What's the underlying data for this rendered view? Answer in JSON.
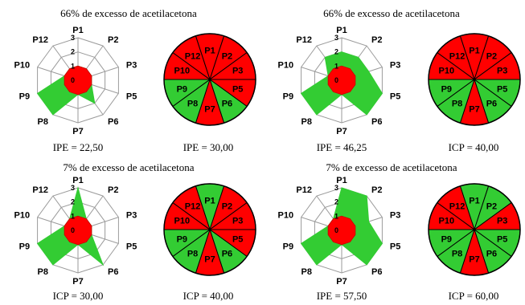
{
  "chart_data": [
    {
      "title": "66% de excesso de acetilacetona",
      "radar": {
        "type": "radar",
        "axes": [
          "P1",
          "P2",
          "P3",
          "P5",
          "P6",
          "P7",
          "P8",
          "P9",
          "P10",
          "P12"
        ],
        "values": [
          1,
          1,
          1,
          1,
          2,
          1,
          3,
          3,
          1,
          1
        ],
        "ticks": [
          "0",
          "1",
          "2",
          "3"
        ],
        "rmax": 3,
        "index_label": "IPE = 22,50"
      },
      "pie": {
        "type": "pie",
        "slices": [
          "P1",
          "P2",
          "P3",
          "P5",
          "P6",
          "P7",
          "P8",
          "P9",
          "P10",
          "P12"
        ],
        "status": [
          "red",
          "red",
          "red",
          "red",
          "green",
          "red",
          "green",
          "green",
          "red",
          "red"
        ],
        "index_label": "IPE = 30,00"
      }
    },
    {
      "title": "66% de excesso de acetilacetona",
      "radar": {
        "type": "radar",
        "axes": [
          "P1",
          "P2",
          "P3",
          "P5",
          "P6",
          "P7",
          "P8",
          "P9",
          "P10",
          "P12"
        ],
        "values": [
          2,
          2,
          2,
          3,
          3,
          1,
          3,
          3,
          1,
          2
        ],
        "ticks": [
          "0",
          "1",
          "2",
          "3"
        ],
        "rmax": 3,
        "index_label": "IPE = 46,25"
      },
      "pie": {
        "type": "pie",
        "slices": [
          "P1",
          "P2",
          "P3",
          "P5",
          "P6",
          "P7",
          "P8",
          "P9",
          "P10",
          "P12"
        ],
        "status": [
          "red",
          "red",
          "red",
          "green",
          "green",
          "red",
          "green",
          "green",
          "red",
          "red"
        ],
        "index_label": "ICP = 40,00"
      }
    },
    {
      "title": "7% de excesso de acetilacetona",
      "radar": {
        "type": "radar",
        "axes": [
          "P1",
          "P2",
          "P3",
          "P5",
          "P6",
          "P7",
          "P8",
          "P9",
          "P10",
          "P12"
        ],
        "values": [
          3,
          1,
          1,
          1,
          3,
          1,
          3,
          3,
          1,
          1
        ],
        "ticks": [
          "0",
          "1",
          "2",
          "3"
        ],
        "rmax": 3,
        "index_label": "ICP = 30,00"
      },
      "pie": {
        "type": "pie",
        "slices": [
          "P1",
          "P2",
          "P3",
          "P5",
          "P6",
          "P7",
          "P8",
          "P9",
          "P10",
          "P12"
        ],
        "status": [
          "green",
          "red",
          "red",
          "red",
          "green",
          "red",
          "green",
          "green",
          "red",
          "red"
        ],
        "index_label": "ICP = 40,00"
      }
    },
    {
      "title": "7% de excesso de acetilacetona",
      "radar": {
        "type": "radar",
        "axes": [
          "P1",
          "P2",
          "P3",
          "P5",
          "P6",
          "P7",
          "P8",
          "P9",
          "P10",
          "P12"
        ],
        "values": [
          3,
          3,
          2,
          3,
          3,
          1,
          3,
          3,
          1,
          1
        ],
        "ticks": [
          "0",
          "1",
          "2",
          "3"
        ],
        "rmax": 3,
        "index_label": "IPE = 57,50"
      },
      "pie": {
        "type": "pie",
        "slices": [
          "P1",
          "P2",
          "P3",
          "P5",
          "P6",
          "P7",
          "P8",
          "P9",
          "P10",
          "P12"
        ],
        "status": [
          "green",
          "green",
          "red",
          "green",
          "green",
          "red",
          "green",
          "green",
          "red",
          "red"
        ],
        "index_label": "ICP = 60,00"
      }
    }
  ],
  "colors": {
    "green": "#33cc33",
    "red": "#ff0000",
    "red_dark": "#d40000",
    "grid": "#9a9a9a",
    "outline": "#000000"
  }
}
